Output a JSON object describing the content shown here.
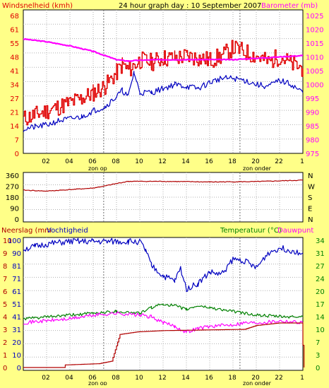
{
  "header": {
    "left_label": "Windsnelheid (kmh)",
    "title": "24 hour graph day : 10 September 2007",
    "right_label": "Barometer (mb)"
  },
  "colors": {
    "background": "#ffff88",
    "plot": "#ffffff",
    "red": "#e00000",
    "blue": "#0000c0",
    "magenta": "#ff00ff",
    "green": "#008000",
    "dark_red": "#b00000",
    "axis_text": "#000000"
  },
  "x_axis": {
    "hour_ticks": [
      "02",
      "04",
      "06",
      "08",
      "10",
      "12",
      "14",
      "16",
      "18",
      "20",
      "22",
      "1"
    ],
    "sunrise_label": "zon op",
    "sunset_label": "zon onder",
    "sunrise_hour": 6.9,
    "sunset_hour": 18.6,
    "range_hours": [
      0,
      24
    ]
  },
  "chart_data": [
    {
      "type": "line",
      "name": "wind-barometer",
      "y_left": {
        "label": "Windsnelheid (kmh)",
        "ticks": [
          "68",
          "61",
          "55",
          "48",
          "41",
          "34",
          "27",
          "21",
          "14",
          "7",
          "0"
        ],
        "range": [
          0,
          68
        ]
      },
      "y_right": {
        "label": "Barometer (mb)",
        "ticks": [
          "1025",
          "1020",
          "1015",
          "1010",
          "1005",
          "1000",
          "995",
          "990",
          "985",
          "980",
          "975"
        ],
        "range": [
          975,
          1025
        ]
      },
      "series": [
        {
          "key": "gust",
          "color": "#e00000",
          "axis": "left",
          "x": [
            0,
            1,
            2,
            3,
            4,
            5,
            6,
            7,
            8,
            8.5,
            9,
            10,
            11,
            12,
            13,
            14,
            15,
            16,
            17,
            18,
            19,
            20,
            21,
            22,
            23,
            24
          ],
          "y": [
            17,
            19,
            21,
            23,
            25,
            27,
            30,
            33,
            40,
            44,
            41,
            46,
            45,
            47,
            47,
            48,
            47,
            46,
            48,
            52,
            50,
            48,
            45,
            48,
            44,
            42
          ]
        },
        {
          "key": "wind",
          "color": "#0000c0",
          "axis": "left",
          "x": [
            0,
            1,
            2,
            3,
            4,
            5,
            6,
            7,
            8,
            8.5,
            9,
            9.5,
            10,
            11,
            12,
            13,
            14,
            15,
            16,
            17,
            18,
            19,
            20,
            21,
            22,
            23,
            24
          ],
          "y": [
            12,
            13,
            14,
            16,
            17,
            18,
            21,
            23,
            28,
            31,
            28,
            40,
            30,
            30,
            32,
            34,
            33,
            32,
            35,
            37,
            37,
            36,
            34,
            33,
            36,
            34,
            30
          ]
        },
        {
          "key": "barometer",
          "color": "#ff00ff",
          "axis": "right",
          "x": [
            0,
            2,
            4,
            6,
            7,
            8,
            9,
            10,
            12,
            14,
            16,
            18,
            20,
            22,
            24
          ],
          "y": [
            1016.5,
            1015.5,
            1014,
            1012,
            1010.5,
            1009,
            1008.5,
            1008.8,
            1009,
            1009,
            1009,
            1009,
            1009.5,
            1010,
            1010.5
          ]
        }
      ]
    },
    {
      "type": "line",
      "name": "wind-direction",
      "y_left": {
        "ticks": [
          "360",
          "270",
          "180",
          "90",
          "0"
        ],
        "range": [
          0,
          360
        ]
      },
      "y_right": {
        "ticks": [
          "N",
          "W",
          "S",
          "E",
          "N"
        ]
      },
      "series": [
        {
          "key": "direction",
          "color": "#b00000",
          "x": [
            0,
            2,
            4,
            6,
            7,
            8,
            9,
            12,
            16,
            20,
            24
          ],
          "y": [
            238,
            230,
            242,
            255,
            272,
            292,
            310,
            310,
            305,
            308,
            320
          ]
        }
      ]
    },
    {
      "type": "line",
      "name": "rain-humidity-temp",
      "labels": {
        "left": "Neerslag (mm",
        "left2": "Vochtigheid",
        "right": "Temperatuur (°C)",
        "right2": "Dauwpunt"
      },
      "y_left_outer": {
        "ticks": [
          "10",
          "9",
          "8",
          "7",
          "6",
          "5",
          "4",
          "3",
          "2",
          "1",
          "0"
        ]
      },
      "y_left": {
        "ticks": [
          "100",
          "90",
          "81",
          "71",
          "61",
          "51",
          "41",
          "31",
          "20",
          "10",
          "0"
        ],
        "range": [
          0,
          100
        ]
      },
      "y_right": {
        "ticks": [
          "34",
          "31",
          "27",
          "24",
          "20",
          "17",
          "14",
          "10",
          "7",
          "3",
          "0"
        ],
        "range": [
          0,
          34
        ]
      },
      "series": [
        {
          "key": "humidity",
          "color": "#0000c0",
          "axis": "left",
          "x": [
            0,
            1,
            2,
            4,
            6,
            8,
            9,
            10,
            10.5,
            11,
            12,
            13,
            13.5,
            14,
            15,
            16,
            17,
            18,
            19,
            20,
            21,
            22,
            23,
            24
          ],
          "y": [
            93,
            95,
            97,
            99,
            99,
            99,
            99,
            99,
            92,
            80,
            72,
            68,
            78,
            62,
            66,
            75,
            73,
            85,
            84,
            78,
            90,
            94,
            92,
            90
          ]
        },
        {
          "key": "temperature",
          "color": "#008000",
          "axis": "right",
          "x": [
            0,
            2,
            4,
            6,
            8,
            10,
            11,
            12,
            13,
            14,
            15,
            16,
            17,
            18,
            19,
            20,
            21,
            22,
            23,
            24
          ],
          "y": [
            13,
            13.5,
            14,
            14.5,
            15,
            14.5,
            16,
            17,
            16.5,
            15.5,
            16.5,
            16,
            15.5,
            15,
            14.5,
            14,
            13.8,
            13.6,
            13.5,
            13.6
          ]
        },
        {
          "key": "dewpoint",
          "color": "#ff00ff",
          "axis": "right",
          "x": [
            0,
            2,
            4,
            6,
            8,
            10,
            11,
            12,
            13,
            14,
            15,
            16,
            17,
            18,
            19,
            20,
            21,
            22,
            23,
            24
          ],
          "y": [
            12,
            12.5,
            13,
            14,
            14.5,
            14,
            13.5,
            12,
            11,
            9.5,
            10.5,
            11,
            11.2,
            11.5,
            12,
            12,
            12.2,
            12.5,
            12.3,
            12
          ]
        },
        {
          "key": "rain",
          "color": "#b00000",
          "axis": "left_outer",
          "x": [
            0,
            3.5,
            3.6,
            6.5,
            7.6,
            8.3,
            9.8,
            12,
            19,
            20,
            22,
            23.9,
            24.1
          ],
          "y": [
            0,
            0,
            0.2,
            0.3,
            0.5,
            2.6,
            2.8,
            2.9,
            3.0,
            3.3,
            3.5,
            3.5,
            0
          ]
        }
      ]
    }
  ]
}
